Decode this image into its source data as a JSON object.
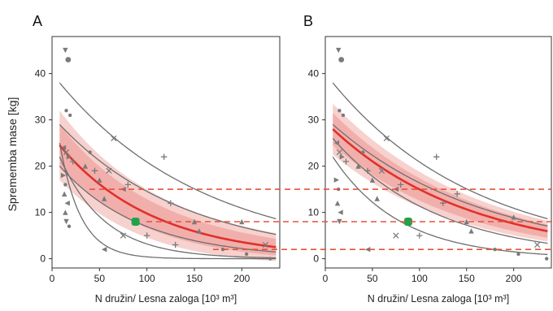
{
  "figure": {
    "ylabel": "Sprememba mase [kg]",
    "colors": {
      "fit_line": "#e0312a",
      "band_outer": "#f6c9c6",
      "band_inner": "#f0a9a6",
      "curves": "#6e6e6e",
      "markers": "#7a7a7a",
      "highlight": "#1fa34a",
      "dashed": "#e8503a"
    }
  },
  "chart_data": [
    {
      "panel": "A",
      "type": "scatter",
      "title": "A",
      "xlabel": "N družin/ Lesna zaloga [10³ m³]",
      "ylabel": "Sprememba mase [kg]",
      "xlim": [
        0,
        240
      ],
      "ylim": [
        -2,
        48
      ],
      "xticks": [
        "0",
        "50",
        "100",
        "150",
        "200"
      ],
      "xtick_values": [
        0,
        50,
        100,
        150,
        200
      ],
      "yticks": [
        "0",
        "10",
        "20",
        "30",
        "40"
      ],
      "ytick_values": [
        0,
        10,
        20,
        30,
        40
      ],
      "grid": false,
      "fit": {
        "name": "",
        "a": 24.5,
        "k": 0.01,
        "band_inner": 4.5,
        "band_outer": 7.5
      },
      "curves": [
        {
          "a": 38,
          "k": 0.0065
        },
        {
          "a": 29,
          "k": 0.0075
        },
        {
          "a": 20,
          "k": 0.0115
        },
        {
          "a": 22,
          "k": 0.021
        },
        {
          "a": 25,
          "k": 0.045
        }
      ],
      "points": [
        {
          "x": 14,
          "y": 45,
          "m": "tri_down"
        },
        {
          "x": 17,
          "y": 43,
          "m": "circle"
        },
        {
          "x": 15,
          "y": 32,
          "m": "dot"
        },
        {
          "x": 19,
          "y": 31,
          "m": "dot"
        },
        {
          "x": 12,
          "y": 24,
          "m": "tri_left"
        },
        {
          "x": 15,
          "y": 23,
          "m": "x"
        },
        {
          "x": 18,
          "y": 22,
          "m": "tri_right"
        },
        {
          "x": 22,
          "y": 21,
          "m": "plus"
        },
        {
          "x": 12,
          "y": 18,
          "m": "tri_right"
        },
        {
          "x": 14,
          "y": 16,
          "m": "dot"
        },
        {
          "x": 13,
          "y": 14,
          "m": "tri_up"
        },
        {
          "x": 16,
          "y": 12,
          "m": "tri_left"
        },
        {
          "x": 14,
          "y": 10,
          "m": "tri_up"
        },
        {
          "x": 15,
          "y": 8,
          "m": "tri_down"
        },
        {
          "x": 18,
          "y": 7,
          "m": "dot"
        },
        {
          "x": 35,
          "y": 20,
          "m": "tri_up"
        },
        {
          "x": 40,
          "y": 23,
          "m": "dot"
        },
        {
          "x": 45,
          "y": 19,
          "m": "plus"
        },
        {
          "x": 50,
          "y": 17,
          "m": "tri_up"
        },
        {
          "x": 55,
          "y": 13,
          "m": "tri_up"
        },
        {
          "x": 60,
          "y": 19,
          "m": "x"
        },
        {
          "x": 65,
          "y": 26,
          "m": "x"
        },
        {
          "x": 75,
          "y": 15,
          "m": "tri_left"
        },
        {
          "x": 80,
          "y": 16,
          "m": "plus"
        },
        {
          "x": 55,
          "y": 2,
          "m": "tri_left"
        },
        {
          "x": 75,
          "y": 5,
          "m": "x"
        },
        {
          "x": 100,
          "y": 5,
          "m": "plus"
        },
        {
          "x": 118,
          "y": 22,
          "m": "plus"
        },
        {
          "x": 125,
          "y": 12,
          "m": "plus"
        },
        {
          "x": 130,
          "y": 3,
          "m": "plus"
        },
        {
          "x": 150,
          "y": 8,
          "m": "tri_up"
        },
        {
          "x": 155,
          "y": 6,
          "m": "tri_up"
        },
        {
          "x": 180,
          "y": 2,
          "m": "dot"
        },
        {
          "x": 200,
          "y": 8,
          "m": "tri_up"
        },
        {
          "x": 205,
          "y": 1,
          "m": "dot"
        },
        {
          "x": 225,
          "y": 3,
          "m": "x"
        },
        {
          "x": 230,
          "y": 0,
          "m": "dot"
        }
      ],
      "highlight_point": {
        "x": 88,
        "y": 8
      }
    },
    {
      "panel": "B",
      "type": "scatter",
      "title": "B",
      "xlabel": "N družin/ Lesna zaloga [10³ m³]",
      "ylabel": "",
      "xlim": [
        0,
        240
      ],
      "ylim": [
        -2,
        48
      ],
      "xticks": [
        "0",
        "50",
        "100",
        "150",
        "200"
      ],
      "xtick_values": [
        0,
        50,
        100,
        150,
        200
      ],
      "yticks": [
        "0",
        "10",
        "20",
        "30",
        "40"
      ],
      "ytick_values": [
        0,
        10,
        20,
        30,
        40
      ],
      "grid": false,
      "fit": {
        "name": "",
        "a": 28,
        "k": 0.0068,
        "band_inner": 3.5,
        "band_outer": 5.5
      },
      "curves": [
        {
          "a": 38,
          "k": 0.0065
        },
        {
          "a": 29,
          "k": 0.0062
        },
        {
          "a": 26,
          "k": 0.009
        },
        {
          "a": 22,
          "k": 0.014
        }
      ],
      "points": [
        {
          "x": 14,
          "y": 45,
          "m": "tri_down"
        },
        {
          "x": 17,
          "y": 43,
          "m": "circle"
        },
        {
          "x": 15,
          "y": 32,
          "m": "dot"
        },
        {
          "x": 19,
          "y": 31,
          "m": "dot"
        },
        {
          "x": 12,
          "y": 25,
          "m": "tri_left"
        },
        {
          "x": 15,
          "y": 23,
          "m": "x"
        },
        {
          "x": 18,
          "y": 22,
          "m": "tri_right"
        },
        {
          "x": 22,
          "y": 21,
          "m": "plus"
        },
        {
          "x": 12,
          "y": 17,
          "m": "tri_right"
        },
        {
          "x": 14,
          "y": 15,
          "m": "dot"
        },
        {
          "x": 13,
          "y": 12,
          "m": "tri_up"
        },
        {
          "x": 16,
          "y": 10,
          "m": "tri_left"
        },
        {
          "x": 15,
          "y": 8,
          "m": "tri_down"
        },
        {
          "x": 35,
          "y": 20,
          "m": "tri_up"
        },
        {
          "x": 40,
          "y": 23,
          "m": "dot"
        },
        {
          "x": 45,
          "y": 19,
          "m": "plus"
        },
        {
          "x": 50,
          "y": 17,
          "m": "tri_up"
        },
        {
          "x": 55,
          "y": 13,
          "m": "tri_up"
        },
        {
          "x": 60,
          "y": 19,
          "m": "x"
        },
        {
          "x": 65,
          "y": 26,
          "m": "x"
        },
        {
          "x": 75,
          "y": 15,
          "m": "tri_left"
        },
        {
          "x": 80,
          "y": 16,
          "m": "plus"
        },
        {
          "x": 45,
          "y": 2,
          "m": "tri_left"
        },
        {
          "x": 75,
          "y": 5,
          "m": "x"
        },
        {
          "x": 100,
          "y": 5,
          "m": "plus"
        },
        {
          "x": 118,
          "y": 22,
          "m": "plus"
        },
        {
          "x": 125,
          "y": 12,
          "m": "plus"
        },
        {
          "x": 140,
          "y": 14,
          "m": "plus"
        },
        {
          "x": 150,
          "y": 8,
          "m": "tri_up"
        },
        {
          "x": 155,
          "y": 6,
          "m": "tri_up"
        },
        {
          "x": 180,
          "y": 2,
          "m": "dot"
        },
        {
          "x": 200,
          "y": 9,
          "m": "tri_up"
        },
        {
          "x": 205,
          "y": 1,
          "m": "dot"
        },
        {
          "x": 225,
          "y": 3,
          "m": "x"
        },
        {
          "x": 235,
          "y": 0,
          "m": "dot"
        }
      ],
      "highlight_point": {
        "x": 88,
        "y": 8
      }
    }
  ],
  "reference_lines": [
    15,
    8,
    2
  ]
}
